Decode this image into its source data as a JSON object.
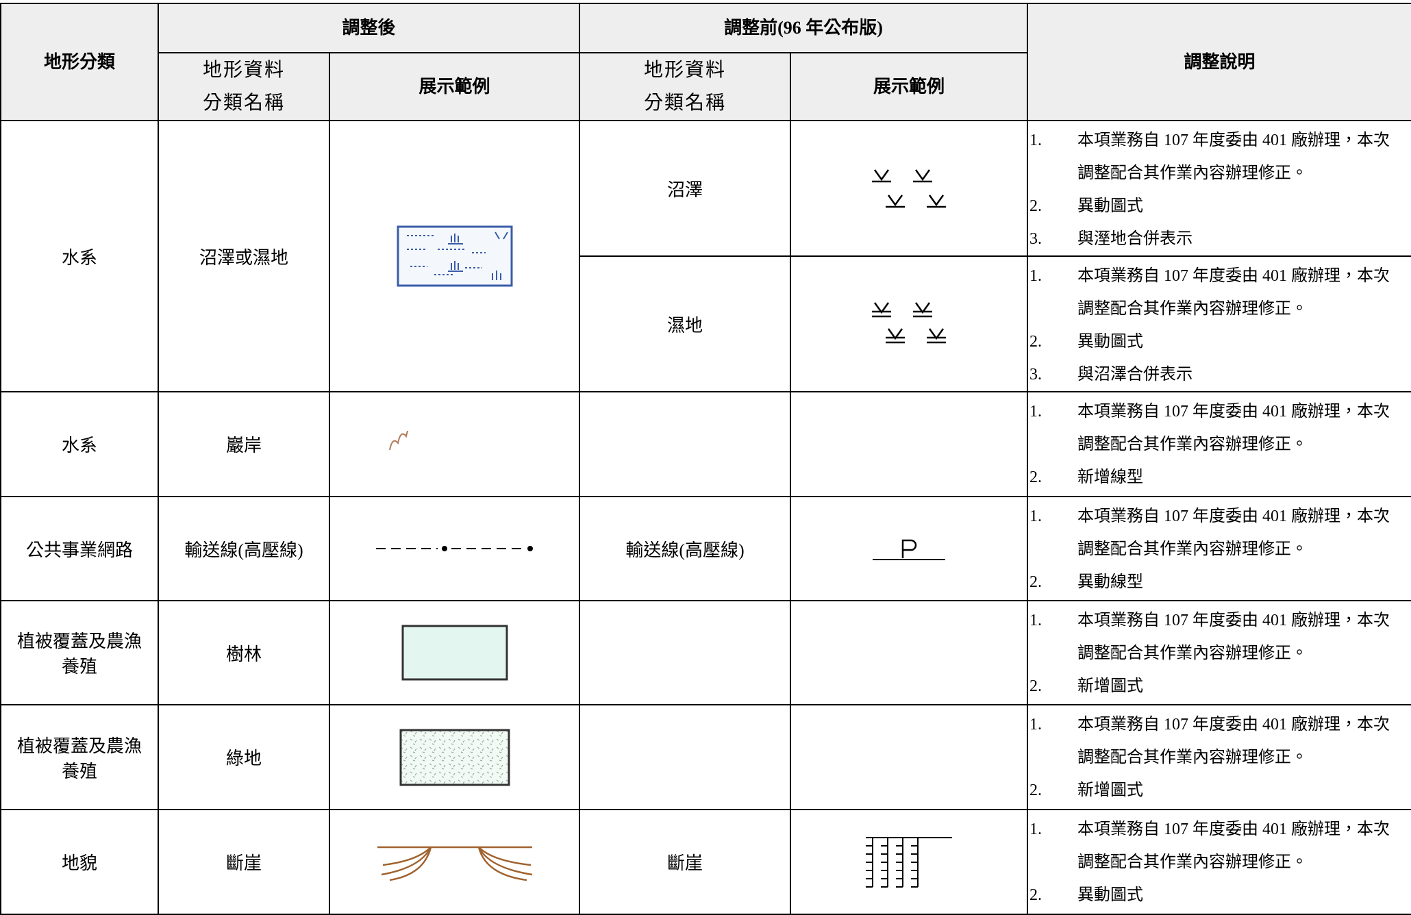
{
  "header": {
    "category": "地形分類",
    "after": "調整後",
    "before": "調整前(96 年公布版)",
    "note": "調整說明",
    "after_name": [
      "地形資料",
      "分類名稱"
    ],
    "after_example": "展示範例",
    "before_name": [
      "地形資料",
      "分類名稱"
    ],
    "before_example": "展示範例"
  },
  "rows": [
    {
      "category": "水系",
      "after_name": "沼澤或濕地",
      "before": [
        {
          "name": "沼澤",
          "notes": [
            {
              "marker": "1.",
              "text": "本項業務自 107 年度委由 401 廠辦理，本次調整配合其作業內容辦理修正。"
            },
            {
              "marker": "2.",
              "text": "異動圖式"
            },
            {
              "marker": "3.",
              "text": "與溼地合併表示"
            }
          ]
        },
        {
          "name": "濕地",
          "notes": [
            {
              "marker": "1.",
              "text": "本項業務自 107 年度委由 401 廠辦理，本次調整配合其作業內容辦理修正。"
            },
            {
              "marker": "2.",
              "text": "異動圖式"
            },
            {
              "marker": "3.",
              "text": "與沼澤合併表示"
            }
          ]
        }
      ]
    },
    {
      "category": "水系",
      "after_name": "巖岸",
      "notes": [
        {
          "marker": "1.",
          "text": "本項業務自 107 年度委由 401 廠辦理，本次調整配合其作業內容辦理修正。"
        },
        {
          "marker": "2.",
          "text": "新增線型"
        }
      ]
    },
    {
      "category": "公共事業網路",
      "after_name": "輸送線(高壓線)",
      "before_name": "輸送線(高壓線)",
      "notes": [
        {
          "marker": "1.",
          "text": "本項業務自 107 年度委由 401 廠辦理，本次調整配合其作業內容辦理修正。"
        },
        {
          "marker": "2.",
          "text": "異動線型"
        }
      ]
    },
    {
      "category": "植被覆蓋及農漁養殖",
      "after_name": "樹林",
      "notes": [
        {
          "marker": "1.",
          "text": "本項業務自 107 年度委由 401 廠辦理，本次調整配合其作業內容辦理修正。"
        },
        {
          "marker": "2.",
          "text": "新增圖式"
        }
      ]
    },
    {
      "category": "植被覆蓋及農漁養殖",
      "after_name": "綠地",
      "notes": [
        {
          "marker": "1.",
          "text": "本項業務自 107 年度委由 401 廠辦理，本次調整配合其作業內容辦理修正。"
        },
        {
          "marker": "2.",
          "text": "新增圖式"
        }
      ]
    },
    {
      "category": "地貌",
      "after_name": "斷崖",
      "before_name": "斷崖",
      "notes": [
        {
          "marker": "1.",
          "text": "本項業務自 107 年度委由 401 廠辦理，本次調整配合其作業內容辦理修正。"
        },
        {
          "marker": "2.",
          "text": "異動圖式"
        }
      ]
    }
  ]
}
